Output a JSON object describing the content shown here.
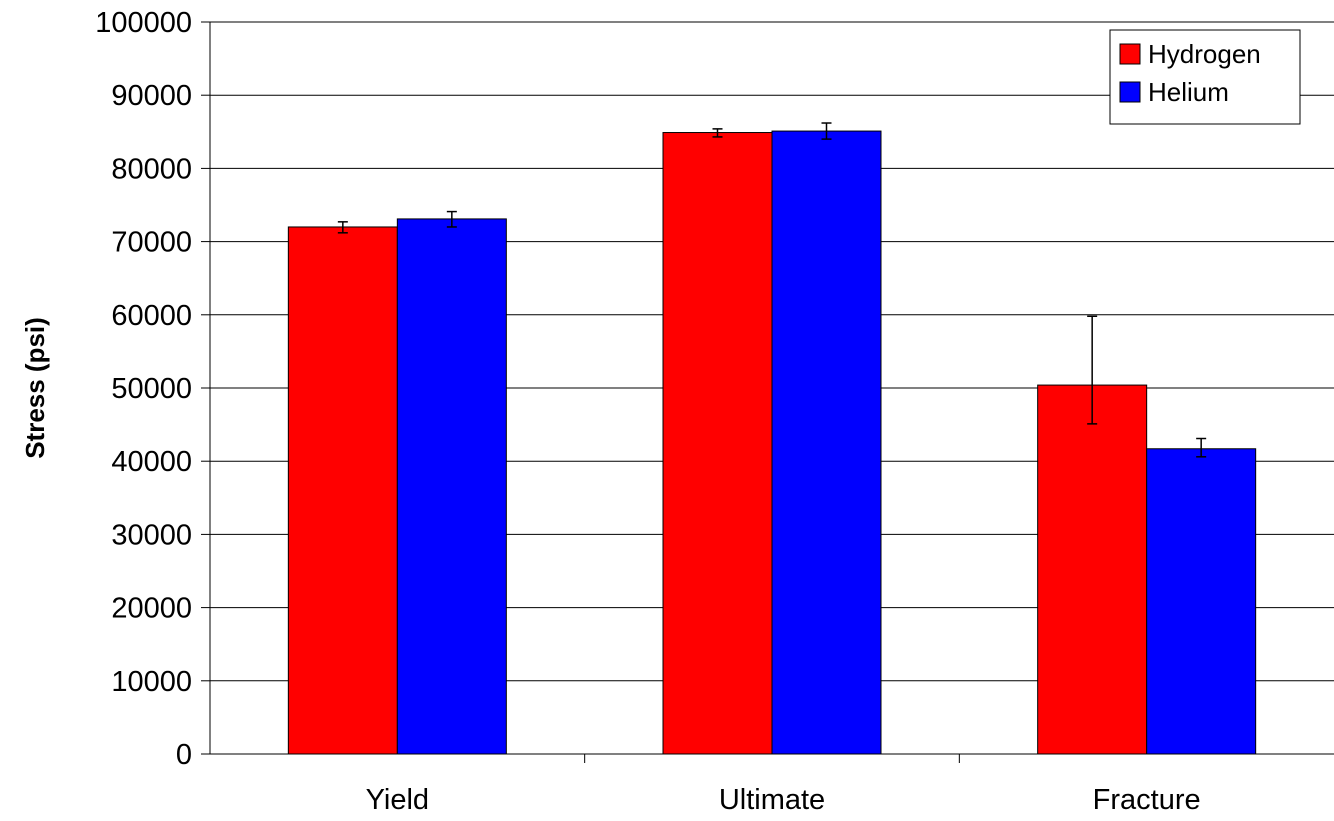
{
  "chart_data": {
    "type": "bar",
    "title": "",
    "xlabel": "",
    "ylabel": "Stress (psi)",
    "ylim": [
      0,
      100000
    ],
    "yticks": [
      0,
      10000,
      20000,
      30000,
      40000,
      50000,
      60000,
      70000,
      80000,
      90000,
      100000
    ],
    "categories": [
      "Yield",
      "Ultimate",
      "Fracture"
    ],
    "grid": true,
    "legend_position": "top-right",
    "series": [
      {
        "name": "Hydrogen",
        "color": "#ff0000",
        "values": [
          72000,
          84900,
          50400
        ],
        "error_low": [
          71200,
          84300,
          45100
        ],
        "error_high": [
          72700,
          85400,
          59800
        ]
      },
      {
        "name": "Helium",
        "color": "#0000ff",
        "values": [
          73100,
          85100,
          41700
        ],
        "error_low": [
          72000,
          84000,
          40600
        ],
        "error_high": [
          74100,
          86200,
          43100
        ]
      }
    ]
  }
}
